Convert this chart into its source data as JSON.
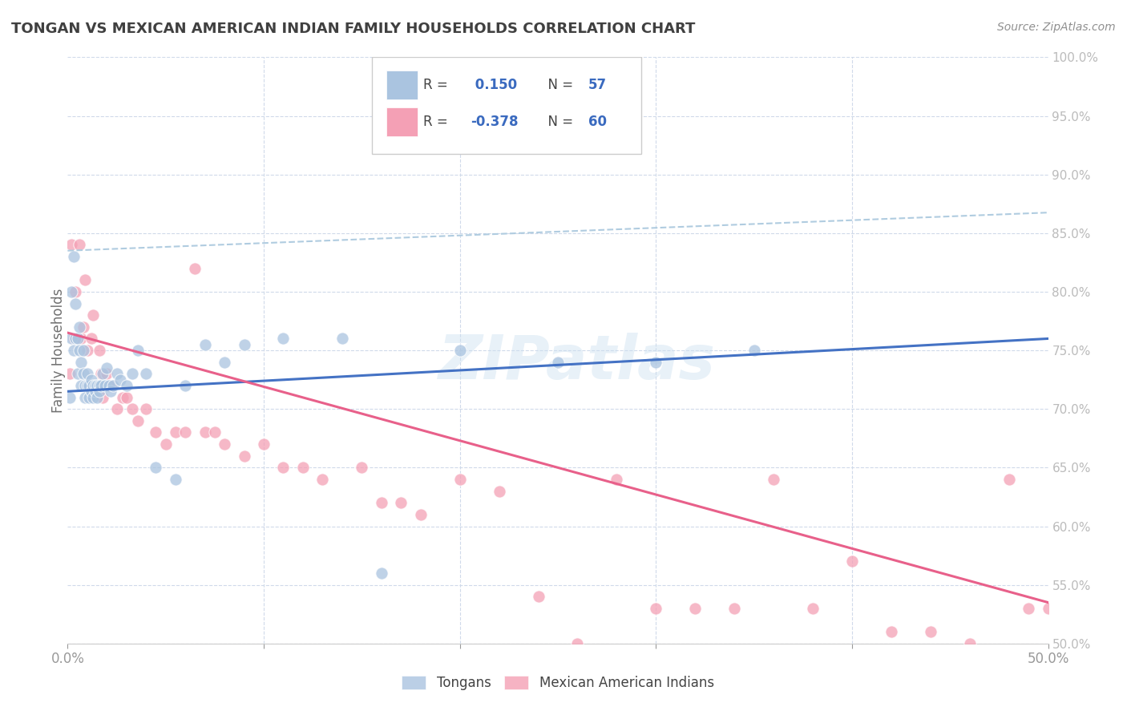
{
  "title": "TONGAN VS MEXICAN AMERICAN INDIAN FAMILY HOUSEHOLDS CORRELATION CHART",
  "source": "Source: ZipAtlas.com",
  "ylabel": "Family Households",
  "xlim": [
    0.0,
    0.5
  ],
  "ylim": [
    0.5,
    1.0
  ],
  "xtick_values": [
    0.0,
    0.1,
    0.2,
    0.3,
    0.4,
    0.5
  ],
  "xtick_labels_show": [
    "0.0%",
    "",
    "",
    "",
    "",
    "50.0%"
  ],
  "ytick_values": [
    0.5,
    0.55,
    0.6,
    0.65,
    0.7,
    0.75,
    0.8,
    0.85,
    0.9,
    0.95,
    1.0
  ],
  "ytick_labels": [
    "50.0%",
    "55.0%",
    "60.0%",
    "65.0%",
    "70.0%",
    "75.0%",
    "80.0%",
    "85.0%",
    "90.0%",
    "95.0%",
    "100.0%"
  ],
  "blue_dot_color": "#aac4e0",
  "pink_dot_color": "#f4a0b5",
  "blue_line_color": "#4472c4",
  "pink_line_color": "#e8608a",
  "blue_dash_color": "#b0cce0",
  "legend_label1": "Tongans",
  "legend_label2": "Mexican American Indians",
  "watermark": "ZIPatlas",
  "background_color": "#ffffff",
  "grid_color": "#d0daea",
  "title_color": "#404040",
  "source_color": "#909090",
  "blue_R": " 0.150",
  "blue_N": "57",
  "pink_R": "-0.378",
  "pink_N": "60",
  "blue_intercept": 0.715,
  "blue_slope": 0.09,
  "pink_intercept": 0.765,
  "pink_slope": -0.46,
  "blue_dash_intercept": 0.835,
  "blue_dash_slope": 0.065,
  "tongans_x": [
    0.001,
    0.002,
    0.002,
    0.003,
    0.003,
    0.004,
    0.004,
    0.005,
    0.005,
    0.006,
    0.006,
    0.007,
    0.007,
    0.008,
    0.008,
    0.009,
    0.009,
    0.01,
    0.01,
    0.011,
    0.011,
    0.012,
    0.012,
    0.013,
    0.013,
    0.014,
    0.014,
    0.015,
    0.015,
    0.016,
    0.016,
    0.017,
    0.018,
    0.019,
    0.02,
    0.021,
    0.022,
    0.023,
    0.025,
    0.027,
    0.03,
    0.033,
    0.036,
    0.04,
    0.045,
    0.055,
    0.06,
    0.07,
    0.08,
    0.09,
    0.11,
    0.14,
    0.16,
    0.2,
    0.25,
    0.3,
    0.35
  ],
  "tongans_y": [
    0.71,
    0.76,
    0.8,
    0.75,
    0.83,
    0.76,
    0.79,
    0.73,
    0.76,
    0.75,
    0.77,
    0.72,
    0.74,
    0.73,
    0.75,
    0.72,
    0.71,
    0.72,
    0.73,
    0.72,
    0.71,
    0.725,
    0.715,
    0.72,
    0.71,
    0.715,
    0.72,
    0.72,
    0.71,
    0.72,
    0.715,
    0.72,
    0.73,
    0.72,
    0.735,
    0.72,
    0.715,
    0.72,
    0.73,
    0.725,
    0.72,
    0.73,
    0.75,
    0.73,
    0.65,
    0.64,
    0.72,
    0.755,
    0.74,
    0.755,
    0.76,
    0.76,
    0.56,
    0.75,
    0.74,
    0.74,
    0.75
  ],
  "mexican_x": [
    0.001,
    0.002,
    0.003,
    0.004,
    0.005,
    0.006,
    0.007,
    0.008,
    0.009,
    0.01,
    0.011,
    0.012,
    0.013,
    0.014,
    0.015,
    0.016,
    0.017,
    0.018,
    0.02,
    0.022,
    0.025,
    0.028,
    0.03,
    0.033,
    0.036,
    0.04,
    0.045,
    0.05,
    0.055,
    0.06,
    0.065,
    0.07,
    0.075,
    0.08,
    0.09,
    0.1,
    0.11,
    0.12,
    0.13,
    0.15,
    0.16,
    0.17,
    0.18,
    0.2,
    0.22,
    0.24,
    0.26,
    0.28,
    0.3,
    0.32,
    0.34,
    0.36,
    0.38,
    0.4,
    0.42,
    0.44,
    0.46,
    0.48,
    0.49,
    0.5
  ],
  "mexican_y": [
    0.73,
    0.84,
    0.76,
    0.8,
    0.76,
    0.84,
    0.76,
    0.77,
    0.81,
    0.75,
    0.72,
    0.76,
    0.78,
    0.72,
    0.72,
    0.75,
    0.73,
    0.71,
    0.73,
    0.72,
    0.7,
    0.71,
    0.71,
    0.7,
    0.69,
    0.7,
    0.68,
    0.67,
    0.68,
    0.68,
    0.82,
    0.68,
    0.68,
    0.67,
    0.66,
    0.67,
    0.65,
    0.65,
    0.64,
    0.65,
    0.62,
    0.62,
    0.61,
    0.64,
    0.63,
    0.54,
    0.5,
    0.64,
    0.53,
    0.53,
    0.53,
    0.64,
    0.53,
    0.57,
    0.51,
    0.51,
    0.5,
    0.64,
    0.53,
    0.53
  ]
}
